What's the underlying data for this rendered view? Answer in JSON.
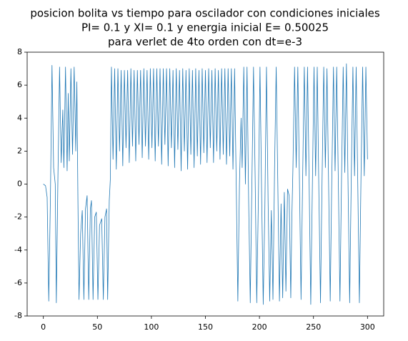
{
  "chart_data": {
    "type": "line",
    "title": [
      "posicion bolita vs tiempo para oscilador con condiciones iniciales",
      "PI= 0.1 y XI= 0.1 y energia inicial E= 0.50025",
      "para verlet de 4to orden con dt=e-3"
    ],
    "xlim": [
      -15,
      315
    ],
    "xticks": [
      0,
      50,
      100,
      150,
      200,
      250,
      300
    ],
    "ylim": [
      -8,
      8
    ],
    "yticks": [
      -8,
      -6,
      -4,
      -2,
      0,
      2,
      4,
      6,
      8
    ],
    "series": [
      {
        "color": "#1f77b4",
        "x": [
          0,
          2,
          3.5,
          5,
          6.5,
          8,
          9.5,
          11,
          12,
          13.5,
          15,
          16.5,
          18,
          19,
          20.5,
          22,
          23,
          24,
          25.5,
          27,
          28.5,
          30,
          31,
          32,
          33,
          34.5,
          36,
          37.5,
          39,
          40.5,
          42,
          43.5,
          44.5,
          46,
          47.5,
          49,
          50.5,
          52,
          54,
          55.5,
          57,
          58.5,
          59.5,
          61,
          62,
          63,
          64.5,
          66,
          67.5,
          69,
          70.5,
          72,
          73.5,
          75,
          76.5,
          78,
          79.5,
          81,
          82.5,
          84,
          85.5,
          87,
          88.5,
          90,
          91.5,
          93,
          94.5,
          96,
          97.5,
          99,
          100.5,
          102,
          103.5,
          105,
          106.5,
          108,
          109.5,
          111,
          112.5,
          114,
          115.5,
          117,
          118.5,
          120,
          121.5,
          123,
          124.5,
          126,
          127.5,
          129,
          130.5,
          132,
          133.5,
          135,
          136.5,
          138,
          139.5,
          141,
          142.5,
          144,
          145.5,
          147,
          148.5,
          150,
          151.5,
          153,
          154.5,
          156,
          157.5,
          159,
          160.5,
          162,
          163.5,
          165,
          166.5,
          168,
          169.5,
          171,
          172.5,
          174,
          175.5,
          177,
          178.5,
          180,
          181.5,
          183,
          184,
          185.5,
          187,
          188.5,
          190,
          191.5,
          193,
          194.5,
          196,
          197.5,
          199,
          200.5,
          202,
          203.5,
          205,
          206.5,
          208,
          209.5,
          211,
          212.5,
          214,
          215.5,
          217,
          218.5,
          220,
          221.5,
          223,
          224.5,
          226,
          227.5,
          229,
          230,
          231,
          232.5,
          234,
          235.5,
          237,
          238.5,
          240,
          241.5,
          243,
          244.5,
          246,
          247.5,
          249,
          250.5,
          252,
          253.5,
          255,
          256.5,
          258,
          259.5,
          261,
          262.5,
          264,
          265.5,
          267,
          268.5,
          270,
          271.5,
          273,
          274.5,
          276,
          277.5,
          279,
          280.5,
          282,
          283.5,
          285,
          286.5,
          288,
          289.5,
          291,
          292.5,
          294,
          295.5,
          297,
          298.5,
          300
        ],
        "values": [
          0,
          -0.1,
          -0.8,
          -7.1,
          -1,
          7.2,
          1,
          0,
          -7.2,
          0.5,
          7.1,
          1.3,
          4.5,
          1,
          7.1,
          0.8,
          5.5,
          1.4,
          7.0,
          1.8,
          7.1,
          2.0,
          6.2,
          -1,
          -7.0,
          -3,
          -1.6,
          -7.0,
          -1.5,
          -0.7,
          -7.0,
          -1.5,
          -1.0,
          -7.0,
          -2,
          -1.7,
          -7.0,
          -2.5,
          -2.1,
          -7.0,
          -2,
          -1.5,
          -7.0,
          -1,
          0.3,
          7.1,
          1.5,
          7.0,
          0.9,
          7.0,
          2.0,
          6.9,
          1.1,
          6.9,
          2.2,
          6.9,
          1.3,
          7.0,
          2.3,
          6.9,
          1.4,
          6.9,
          2.4,
          6.9,
          1.6,
          7.0,
          2.3,
          6.9,
          1.5,
          7.0,
          2.2,
          7.0,
          1.4,
          7.0,
          2.3,
          7.0,
          1.2,
          7.0,
          2.4,
          7.0,
          1.1,
          7.0,
          2.2,
          6.9,
          1.0,
          7.0,
          2.1,
          6.9,
          0.8,
          7.0,
          2.0,
          6.9,
          0.9,
          7.0,
          1.8,
          6.9,
          1.0,
          7.0,
          1.7,
          6.9,
          1.2,
          7.0,
          1.9,
          6.9,
          1.3,
          7.0,
          2.2,
          6.9,
          1.3,
          7.0,
          2.0,
          6.9,
          1.5,
          7.0,
          1.8,
          7.0,
          1.2,
          7.0,
          1.7,
          7.0,
          0.9,
          7.0,
          0,
          -7.1,
          0,
          4,
          1,
          7.1,
          0,
          7.1,
          -1,
          -7.2,
          0,
          7.1,
          0.5,
          -7.2,
          -1,
          7.1,
          -0.5,
          -7.3,
          -1.5,
          7.1,
          -1,
          -7.1,
          -1.6,
          -7.0,
          1,
          7.1,
          0,
          -7.1,
          -1.2,
          -6.9,
          -0.5,
          -6.5,
          -0.3,
          -0.7,
          -6.9,
          -2,
          1,
          7.1,
          1,
          7.1,
          0.3,
          -7.0,
          0.5,
          7.1,
          0.5,
          7.1,
          0,
          -7.3,
          0,
          7.1,
          0.5,
          7.1,
          -0.5,
          -7.2,
          0.5,
          7.1,
          1,
          7.0,
          0,
          -7.1,
          0.5,
          7.1,
          0.8,
          7.1,
          0.2,
          -7.1,
          0.5,
          7.1,
          0.7,
          7.3,
          0,
          -7.2,
          0.5,
          7.1,
          0.5,
          7.1,
          0,
          -7.2,
          0.5,
          7.1,
          0.5,
          7.1,
          1.5
        ]
      }
    ]
  }
}
